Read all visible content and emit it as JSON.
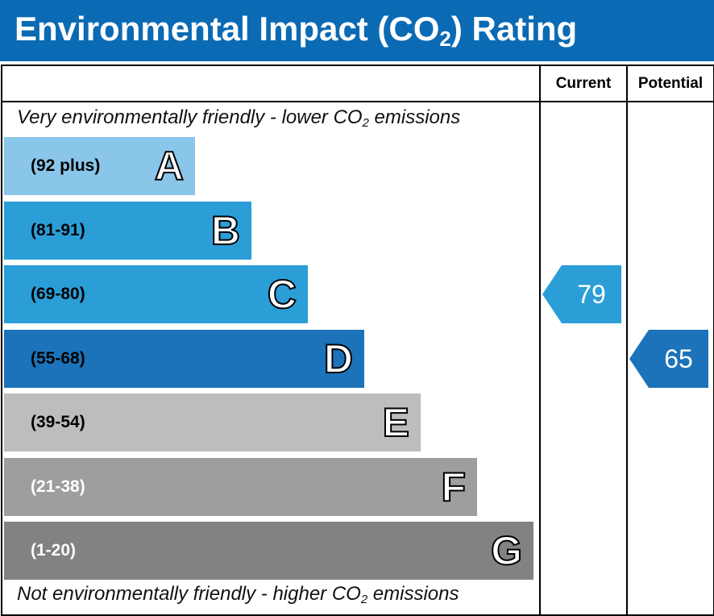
{
  "header": {
    "title_main": "Environmental Impact (CO",
    "title_sub": "2",
    "title_end": ") Rating"
  },
  "columns": {
    "current": "Current",
    "potential": "Potential"
  },
  "descriptions": {
    "top_main": "Very environmentally friendly - lower CO",
    "top_sub": "2",
    "top_end": " emissions",
    "bottom_main": "Not environmentally friendly - higher CO",
    "bottom_sub": "2",
    "bottom_end": " emissions"
  },
  "chart_data": {
    "type": "bar",
    "bands": [
      {
        "letter": "A",
        "range": "(92 plus)",
        "color": "#8ac6e9",
        "text_color": "#000000"
      },
      {
        "letter": "B",
        "range": "(81-91)",
        "color": "#2b9ed8",
        "text_color": "#000000"
      },
      {
        "letter": "C",
        "range": "(69-80)",
        "color": "#2b9ed8",
        "text_color": "#000000"
      },
      {
        "letter": "D",
        "range": "(55-68)",
        "color": "#1c73b9",
        "text_color": "#000000"
      },
      {
        "letter": "E",
        "range": "(39-54)",
        "color": "#bdbdbc",
        "text_color": "#000000"
      },
      {
        "letter": "F",
        "range": "(21-38)",
        "color": "#9d9e9f",
        "text_color": "#ffffff"
      },
      {
        "letter": "G",
        "range": "(1-20)",
        "color": "#818283",
        "text_color": "#ffffff"
      }
    ],
    "current": {
      "value": "79",
      "band": "C",
      "color": "#2b9ed8"
    },
    "potential": {
      "value": "65",
      "band": "D",
      "color": "#1c73b9"
    }
  }
}
